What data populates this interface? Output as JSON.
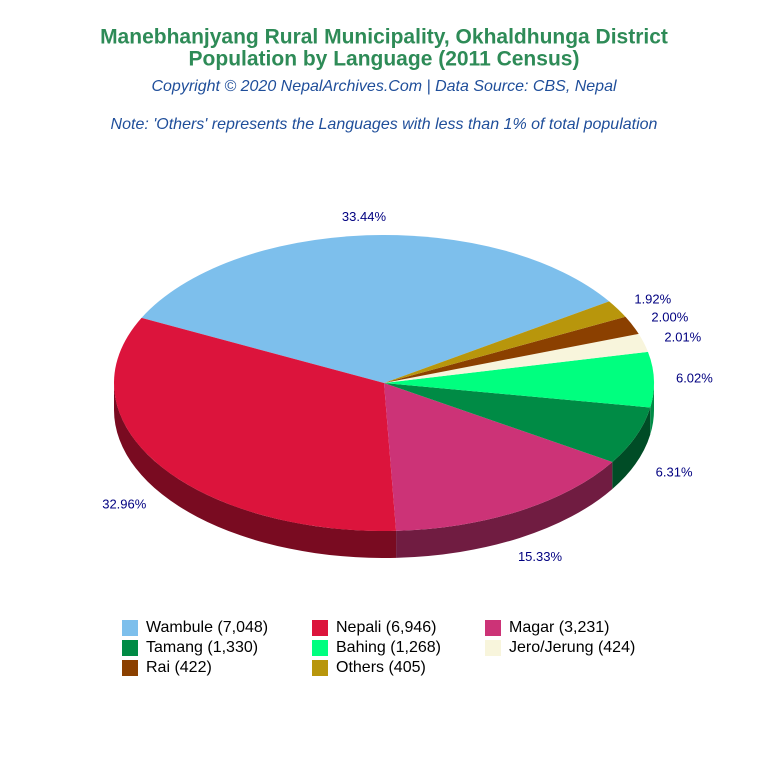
{
  "chart_data": {
    "type": "pie",
    "title": "Manebhanjyang Rural Municipality, Okhaldhunga District",
    "subtitle": "Population by Language (2011 Census)",
    "source": "Copyright © 2020 NepalArchives.Com | Data Source: CBS, Nepal",
    "note": "Note: 'Others' represents the Languages with less than 1% of total population",
    "categories": [
      "Wambule (7,048)",
      "Nepali (6,946)",
      "Magar (3,231)",
      "Tamang (1,330)",
      "Bahing (1,268)",
      "Jero/Jerung (424)",
      "Rai (422)",
      "Others (405)"
    ],
    "values": [
      33.44,
      32.96,
      15.33,
      6.31,
      6.02,
      2.01,
      2.0,
      1.92
    ],
    "value_labels": [
      "33.44%",
      "32.96%",
      "15.33%",
      "6.31%",
      "6.02%",
      "2.01%",
      "2.00%",
      "1.92%"
    ],
    "colors": [
      "#7dbfec",
      "#dc143c",
      "#cc3377",
      "#008b45",
      "#00ff7f",
      "#f8f5dc",
      "#8b4000",
      "#b8960c"
    ]
  }
}
